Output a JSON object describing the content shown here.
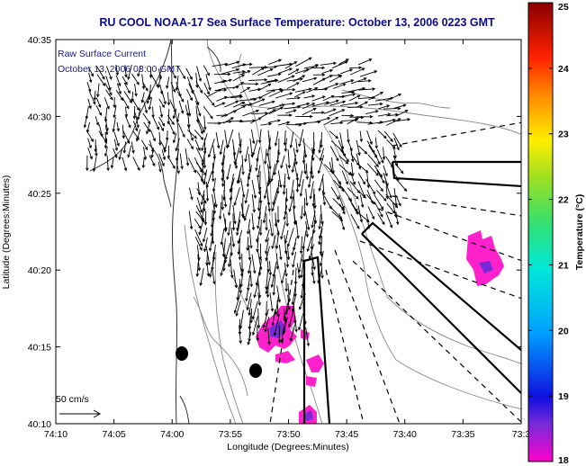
{
  "title": "RU COOL  NOAA-17  Sea Surface Temperature:  October 13, 2006 0223 GMT",
  "legend": {
    "line1": "Raw Surface Current",
    "line2": "October 13, 2006 03:00 GMT"
  },
  "scale_label": "50 cm/s",
  "x_axis": {
    "label": "Longitude (Degrees:Minutes)",
    "ticks": [
      "74:10",
      "74:05",
      "74:00",
      "73:55",
      "73:50",
      "73:45",
      "73:40",
      "73:35",
      "73:3"
    ]
  },
  "y_axis": {
    "label": "Latitude (Degrees:Minutes)",
    "ticks": [
      "40:35",
      "40:30",
      "40:25",
      "40:20",
      "40:15",
      "40:10"
    ]
  },
  "colorbar": {
    "label": "Temperature (°C)",
    "min": 18,
    "max": 25,
    "ticks": [
      "25",
      "24",
      "23",
      "22",
      "21",
      "20",
      "19",
      "18"
    ]
  },
  "colors": {
    "title": "#0a0a8c",
    "sst_patch": "#ff22cc",
    "sst_patch_core": "#6a2cd8"
  },
  "icons": {
    "vector_arrow": "arrow-icon",
    "buoy_marker": "black-ellipse"
  }
}
